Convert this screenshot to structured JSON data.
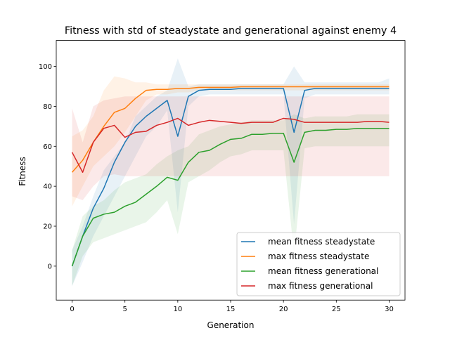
{
  "chart_data": {
    "type": "line",
    "title": "Fitness with std of steadystate and generational against enemy 4",
    "xlabel": "Generation",
    "ylabel": "Fitness",
    "xlim": [
      -1.5,
      31.5
    ],
    "ylim": [
      -17,
      113
    ],
    "xticks": [
      0,
      5,
      10,
      15,
      20,
      25,
      30
    ],
    "yticks": [
      0,
      20,
      40,
      60,
      80,
      100
    ],
    "grid": false,
    "legend_position": "lower-right",
    "series": [
      {
        "name": "mean fitness steadystate",
        "color": "#1f77b4",
        "x": [
          0,
          1,
          2,
          3,
          4,
          5,
          6,
          7,
          8,
          9,
          10,
          11,
          12,
          13,
          14,
          15,
          16,
          17,
          18,
          19,
          20,
          21,
          22,
          23,
          24,
          25,
          26,
          27,
          28,
          29,
          30
        ],
        "values": [
          0,
          15,
          29,
          39,
          52,
          62,
          70,
          75,
          79,
          83,
          65,
          85,
          88,
          88.5,
          88.5,
          88.5,
          89,
          89,
          89,
          89,
          89,
          67,
          88,
          89,
          89,
          89,
          89,
          89,
          89,
          89,
          89
        ],
        "std_low": [
          -10,
          2,
          15,
          25,
          35,
          45,
          55,
          65,
          70,
          78,
          27,
          80,
          85,
          86,
          86,
          86,
          86,
          86,
          86,
          86,
          86,
          21,
          84,
          86,
          86,
          86,
          86,
          86,
          86,
          86,
          86
        ],
        "std_high": [
          8,
          20,
          35,
          48,
          55,
          62,
          75,
          80,
          85,
          88,
          104,
          90,
          91,
          91,
          91,
          91,
          91,
          91,
          91,
          91,
          91,
          100,
          92,
          92,
          92,
          92,
          92,
          92,
          92,
          92,
          94
        ]
      },
      {
        "name": "max fitness steadystate",
        "color": "#ff7f0e",
        "x": [
          0,
          1,
          2,
          3,
          4,
          5,
          6,
          7,
          8,
          9,
          10,
          11,
          12,
          13,
          14,
          15,
          16,
          17,
          18,
          19,
          20,
          21,
          22,
          23,
          24,
          25,
          26,
          27,
          28,
          29,
          30
        ],
        "values": [
          47,
          53,
          62,
          70,
          77,
          79,
          84,
          88,
          88.5,
          88.5,
          89,
          89,
          89.5,
          89.5,
          89.5,
          89.5,
          89.8,
          89.8,
          89.8,
          89.8,
          89.8,
          89.8,
          89.8,
          89.8,
          89.8,
          89.8,
          89.8,
          89.8,
          89.8,
          89.8,
          89.8
        ],
        "std_low": [
          30,
          40,
          50,
          55,
          60,
          67,
          75,
          83,
          86,
          86,
          87,
          87,
          88,
          88,
          88,
          88,
          88,
          88,
          88,
          88,
          88,
          88,
          88,
          88,
          88,
          88,
          88,
          88,
          88,
          88,
          88
        ],
        "std_high": [
          65,
          68,
          75,
          88,
          95,
          94,
          92,
          92,
          91,
          91,
          91,
          91,
          91,
          91,
          91,
          91,
          91,
          91,
          91,
          91,
          91,
          91,
          91,
          91,
          91,
          91,
          91,
          91,
          91,
          91,
          91
        ]
      },
      {
        "name": "mean fitness generational",
        "color": "#2ca02c",
        "x": [
          0,
          1,
          2,
          3,
          4,
          5,
          6,
          7,
          8,
          9,
          10,
          11,
          12,
          13,
          14,
          15,
          16,
          17,
          18,
          19,
          20,
          21,
          22,
          23,
          24,
          25,
          26,
          27,
          28,
          29,
          30
        ],
        "values": [
          0,
          15,
          24,
          26,
          27,
          30,
          32,
          36,
          40,
          44.5,
          43,
          52,
          57,
          58,
          61,
          63.5,
          64,
          66,
          66,
          66.5,
          66.5,
          52,
          67,
          68,
          68,
          68.5,
          68.5,
          69,
          69,
          69,
          69
        ],
        "std_low": [
          -10,
          5,
          12,
          14,
          16,
          18,
          20,
          22,
          27,
          33,
          16,
          42,
          45,
          48,
          52,
          55,
          56,
          58,
          58,
          58,
          58,
          6,
          59,
          60,
          60,
          60,
          60,
          60,
          60,
          60,
          60
        ],
        "std_high": [
          8,
          25,
          30,
          33,
          38,
          42,
          44,
          46,
          51,
          55,
          58,
          60,
          66,
          68,
          70,
          71,
          72,
          73,
          73,
          73,
          73,
          76,
          74,
          75,
          75,
          75,
          75,
          76,
          76,
          76,
          76
        ]
      },
      {
        "name": "max fitness generational",
        "color": "#d62728",
        "x": [
          0,
          1,
          2,
          3,
          4,
          5,
          6,
          7,
          8,
          9,
          10,
          11,
          12,
          13,
          14,
          15,
          16,
          17,
          18,
          19,
          20,
          21,
          22,
          23,
          24,
          25,
          26,
          27,
          28,
          29,
          30
        ],
        "values": [
          57,
          47,
          62,
          69,
          70.5,
          64.5,
          67,
          67.5,
          70.5,
          72,
          74,
          70.5,
          72,
          73,
          72.5,
          72,
          71.5,
          72,
          72,
          72,
          74,
          73.5,
          72,
          72,
          72,
          72,
          72,
          72,
          72.5,
          72.5,
          72
        ],
        "std_low": [
          35,
          33,
          40,
          45,
          46,
          45,
          45,
          45,
          45,
          45,
          45,
          45,
          45,
          45,
          45,
          45,
          45,
          45,
          45,
          45,
          45,
          45,
          45,
          45,
          45,
          45,
          45,
          45,
          45,
          45,
          45
        ],
        "std_high": [
          79,
          62,
          80,
          83,
          84,
          85,
          85,
          85,
          85,
          85,
          85,
          85,
          85,
          85,
          85,
          85,
          85,
          85,
          85,
          85,
          85,
          85,
          85,
          85,
          85,
          85,
          85,
          85,
          85,
          85,
          85
        ]
      }
    ]
  }
}
